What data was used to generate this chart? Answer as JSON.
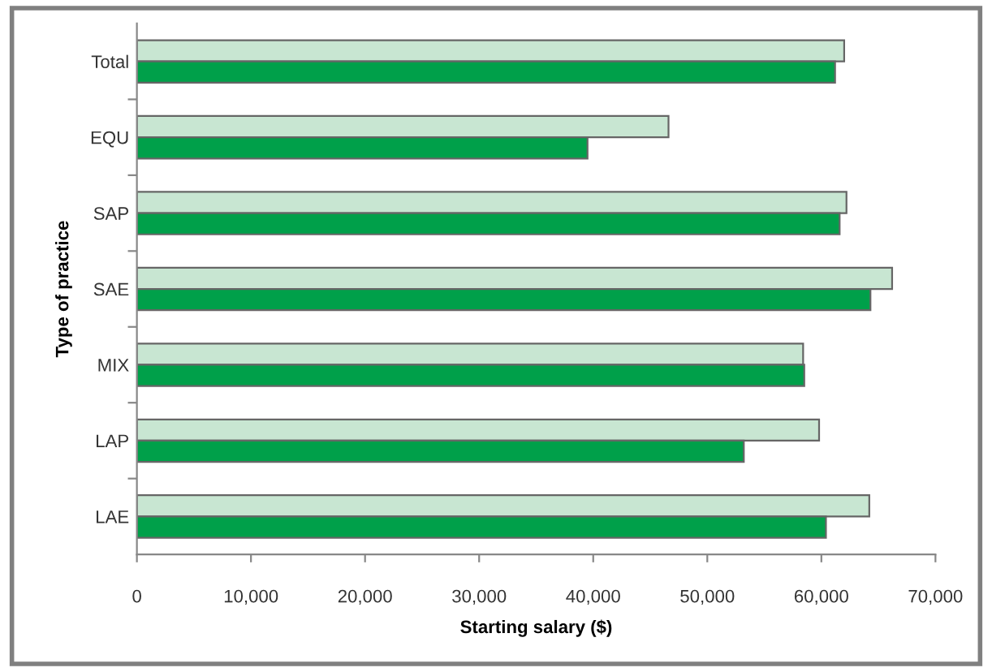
{
  "chart_data": {
    "type": "bar",
    "orientation": "horizontal",
    "xlabel": "Starting salary ($)",
    "ylabel": "Type of practice",
    "categories": [
      "Total",
      "EQU",
      "SAP",
      "SAE",
      "MIX",
      "LAP",
      "LAE"
    ],
    "series": [
      {
        "color": "#c8e6d2",
        "values": [
          62000,
          46600,
          62200,
          66200,
          58400,
          59800,
          64200
        ]
      },
      {
        "color": "#00a04a",
        "values": [
          61200,
          39500,
          61600,
          64300,
          58500,
          53200,
          60400
        ]
      }
    ],
    "xlim": [
      0,
      70000
    ],
    "xticks": [
      {
        "value": 0,
        "label": "0"
      },
      {
        "value": 10000,
        "label": "10,000"
      },
      {
        "value": 20000,
        "label": "20,000"
      },
      {
        "value": 30000,
        "label": "30,000"
      },
      {
        "value": 40000,
        "label": "40,000"
      },
      {
        "value": 50000,
        "label": "50,000"
      },
      {
        "value": 60000,
        "label": "60,000"
      },
      {
        "value": 70000,
        "label": "70,000"
      }
    ],
    "grid": false,
    "legend": false
  }
}
